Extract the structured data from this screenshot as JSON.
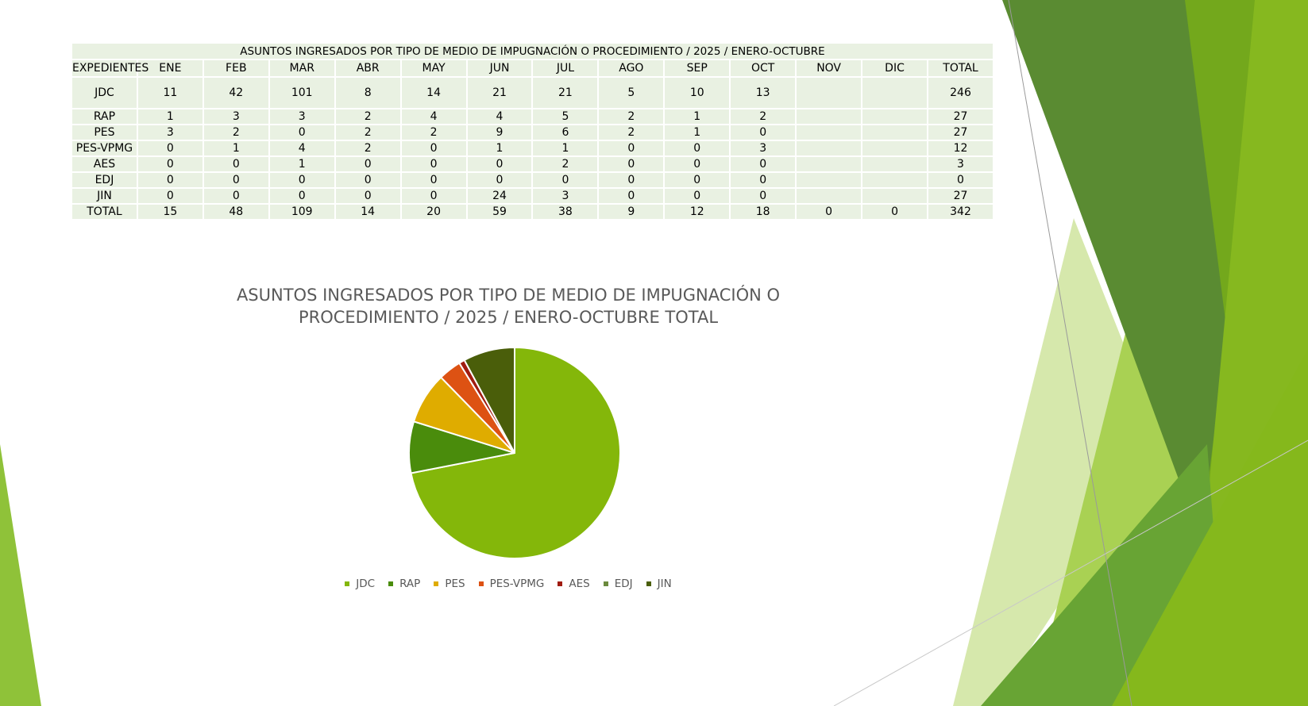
{
  "table": {
    "title": "ASUNTOS INGRESADOS POR TIPO DE MEDIO DE IMPUGNACIÓN O PROCEDIMIENTO / 2025 / ENERO-OCTUBRE",
    "headers": [
      "EXPEDIENTES",
      "ENE",
      "FEB",
      "MAR",
      "ABR",
      "MAY",
      "JUN",
      "JUL",
      "AGO",
      "SEP",
      "OCT",
      "NOV",
      "DIC",
      "TOTAL"
    ],
    "rows": [
      [
        "JDC",
        "11",
        "42",
        "101",
        "8",
        "14",
        "21",
        "21",
        "5",
        "10",
        "13",
        "",
        "",
        "246"
      ],
      [
        "RAP",
        "1",
        "3",
        "3",
        "2",
        "4",
        "4",
        "5",
        "2",
        "1",
        "2",
        "",
        "",
        "27"
      ],
      [
        "PES",
        "3",
        "2",
        "0",
        "2",
        "2",
        "9",
        "6",
        "2",
        "1",
        "0",
        "",
        "",
        "27"
      ],
      [
        "PES-VPMG",
        "0",
        "1",
        "4",
        "2",
        "0",
        "1",
        "1",
        "0",
        "0",
        "3",
        "",
        "",
        "12"
      ],
      [
        "AES",
        "0",
        "0",
        "1",
        "0",
        "0",
        "0",
        "2",
        "0",
        "0",
        "0",
        "",
        "",
        "3"
      ],
      [
        "EDJ",
        "0",
        "0",
        "0",
        "0",
        "0",
        "0",
        "0",
        "0",
        "0",
        "0",
        "",
        "",
        "0"
      ],
      [
        "JIN",
        "0",
        "0",
        "0",
        "0",
        "0",
        "24",
        "3",
        "0",
        "0",
        "0",
        "",
        "",
        "27"
      ],
      [
        "TOTAL",
        "15",
        "48",
        "109",
        "14",
        "20",
        "59",
        "38",
        "9",
        "12",
        "18",
        "0",
        "0",
        "342"
      ]
    ]
  },
  "chart_data": {
    "type": "pie",
    "title": "ASUNTOS INGRESADOS POR TIPO DE MEDIO DE IMPUGNACIÓN O PROCEDIMIENTO / 2025 / ENERO-OCTUBRE TOTAL",
    "categories": [
      "JDC",
      "RAP",
      "PES",
      "PES-VPMG",
      "AES",
      "EDJ",
      "JIN"
    ],
    "values": [
      246,
      27,
      27,
      12,
      3,
      0,
      27
    ],
    "colors": [
      "#84b70a",
      "#4a8c0c",
      "#dfac00",
      "#dd5213",
      "#a01c10",
      "#6b8a3d",
      "#4a5e0a"
    ],
    "legend_position": "bottom"
  },
  "theme": {
    "slice_border": "#ffffff",
    "title_color": "#595959",
    "table_fill": "#e9f1e2"
  }
}
